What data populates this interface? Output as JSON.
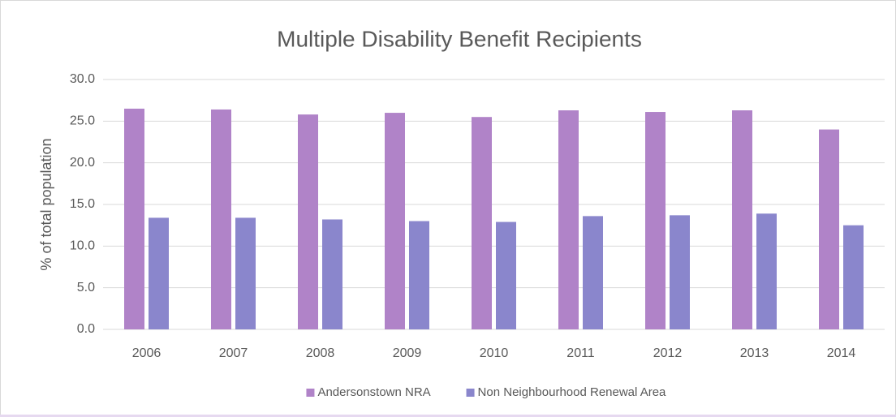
{
  "chart_data": {
    "type": "bar",
    "title": "Multiple Disability Benefit Recipients",
    "y_label": "% of total population",
    "categories": [
      "2006",
      "2007",
      "2008",
      "2009",
      "2010",
      "2011",
      "2012",
      "2013",
      "2014"
    ],
    "series": [
      {
        "name": "Andersonstown NRA",
        "color": "#b083c8",
        "values": [
          26.5,
          26.4,
          25.8,
          26.0,
          25.5,
          26.3,
          26.1,
          26.3,
          24.0
        ]
      },
      {
        "name": "Non Neighbourhood Renewal Area",
        "color": "#8a86cc",
        "values": [
          13.4,
          13.4,
          13.2,
          13.0,
          12.9,
          13.6,
          13.7,
          13.9,
          12.5
        ]
      }
    ],
    "ylim": [
      0,
      30
    ],
    "yticks": [
      {
        "value": 0,
        "label": "0.0"
      },
      {
        "value": 5,
        "label": "5.0"
      },
      {
        "value": 10,
        "label": "10.0"
      },
      {
        "value": 15,
        "label": "15.0"
      },
      {
        "value": 20,
        "label": "20.0"
      },
      {
        "value": 25,
        "label": "25.0"
      },
      {
        "value": 30,
        "label": "30.0"
      }
    ],
    "grid": true,
    "legend": "bottom"
  }
}
